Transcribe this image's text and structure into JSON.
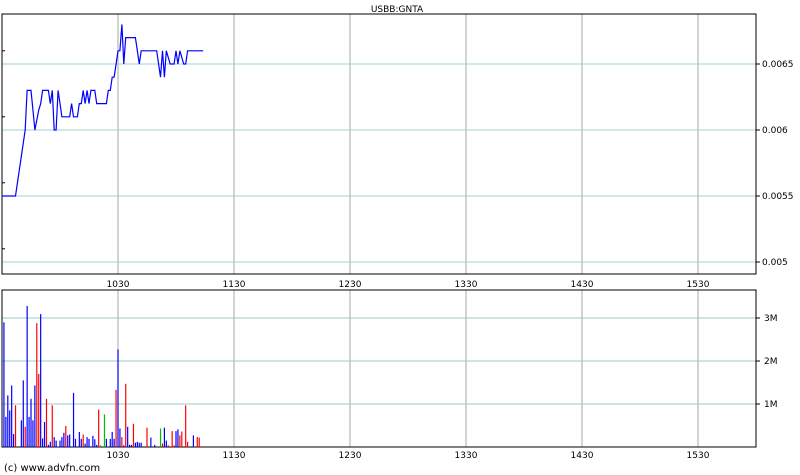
{
  "chart_data": [
    {
      "type": "line",
      "title": "USBB:GNTA",
      "xlim": [
        "09:30",
        "16:00"
      ],
      "ylim": [
        0.0049,
        0.00688
      ],
      "x_ticks": [
        "1030",
        "1130",
        "1230",
        "1330",
        "1430",
        "1530"
      ],
      "y_ticks": [
        "0.005",
        "0.0055",
        "0.006",
        "0.0065"
      ],
      "grid": true,
      "line_color": "#0000ff",
      "points": [
        [
          "09:30",
          0.0055
        ],
        [
          "09:37",
          0.0055
        ],
        [
          "09:42",
          0.006
        ],
        [
          "09:43",
          0.0063
        ],
        [
          "09:45",
          0.0063
        ],
        [
          "09:47",
          0.006
        ],
        [
          "09:49",
          0.00615
        ],
        [
          "09:50",
          0.0062
        ],
        [
          "09:51",
          0.0063
        ],
        [
          "09:54",
          0.0063
        ],
        [
          "09:55",
          0.0062
        ],
        [
          "09:56",
          0.0063
        ],
        [
          "09:57",
          0.006
        ],
        [
          "09:58",
          0.006
        ],
        [
          "09:59",
          0.0063
        ],
        [
          "10:01",
          0.0061
        ],
        [
          "10:05",
          0.0061
        ],
        [
          "10:06",
          0.0062
        ],
        [
          "10:07",
          0.0061
        ],
        [
          "10:09",
          0.0061
        ],
        [
          "10:10",
          0.0062
        ],
        [
          "10:11",
          0.0062
        ],
        [
          "10:12",
          0.0063
        ],
        [
          "10:13",
          0.0062
        ],
        [
          "10:14",
          0.0063
        ],
        [
          "10:15",
          0.0062
        ],
        [
          "10:16",
          0.0063
        ],
        [
          "10:18",
          0.0063
        ],
        [
          "10:19",
          0.0062
        ],
        [
          "10:24",
          0.0062
        ],
        [
          "10:25",
          0.0063
        ],
        [
          "10:26",
          0.0063
        ],
        [
          "10:27",
          0.0064
        ],
        [
          "10:28",
          0.0064
        ],
        [
          "10:29",
          0.0065
        ],
        [
          "10:30",
          0.0066
        ],
        [
          "10:31",
          0.0066
        ],
        [
          "10:32",
          0.0068
        ],
        [
          "10:33",
          0.0065
        ],
        [
          "10:34",
          0.0067
        ],
        [
          "10:39",
          0.0067
        ],
        [
          "10:41",
          0.0065
        ],
        [
          "10:42",
          0.0066
        ],
        [
          "10:50",
          0.0066
        ],
        [
          "10:52",
          0.0064
        ],
        [
          "10:53",
          0.0066
        ],
        [
          "10:54",
          0.0064
        ],
        [
          "10:55",
          0.0066
        ],
        [
          "10:57",
          0.0065
        ],
        [
          "10:59",
          0.0065
        ],
        [
          "11:00",
          0.0066
        ],
        [
          "11:01",
          0.0065
        ],
        [
          "11:02",
          0.0066
        ],
        [
          "11:04",
          0.0065
        ],
        [
          "11:05",
          0.0065
        ],
        [
          "11:06",
          0.0066
        ],
        [
          "11:14",
          0.0066
        ]
      ]
    },
    {
      "type": "bar",
      "xlim": [
        "09:30",
        "16:00"
      ],
      "ylim": [
        0,
        3.6
      ],
      "x_ticks": [
        "1030",
        "1130",
        "1230",
        "1330",
        "1430",
        "1530"
      ],
      "y_ticks": [
        "1M",
        "2M",
        "3M"
      ],
      "grid": true,
      "colors": {
        "blue": "#0000ff",
        "red": "#ff0000",
        "green": "#00c000"
      },
      "bars": [
        [
          "09:31",
          2.9,
          "blue"
        ],
        [
          "09:32",
          0.7,
          "blue"
        ],
        [
          "09:33",
          1.2,
          "blue"
        ],
        [
          "09:34",
          0.85,
          "blue"
        ],
        [
          "09:35",
          1.43,
          "blue"
        ],
        [
          "09:36",
          0.3,
          "blue"
        ],
        [
          "09:37",
          0.97,
          "red"
        ],
        [
          "09:40",
          0.62,
          "blue"
        ],
        [
          "09:41",
          1.55,
          "blue"
        ],
        [
          "09:42",
          0.47,
          "red"
        ],
        [
          "09:43",
          3.28,
          "blue"
        ],
        [
          "09:44",
          0.7,
          "blue"
        ],
        [
          "09:45",
          1.12,
          "blue"
        ],
        [
          "09:46",
          0.62,
          "blue"
        ],
        [
          "09:47",
          1.43,
          "blue"
        ],
        [
          "09:48",
          2.88,
          "red"
        ],
        [
          "09:49",
          1.7,
          "red"
        ],
        [
          "09:50",
          3.09,
          "blue"
        ],
        [
          "09:51",
          0.2,
          "blue"
        ],
        [
          "09:52",
          0.58,
          "blue"
        ],
        [
          "09:53",
          1.12,
          "red"
        ],
        [
          "09:54",
          0.05,
          "blue"
        ],
        [
          "09:55",
          0.12,
          "blue"
        ],
        [
          "09:56",
          0.97,
          "red"
        ],
        [
          "09:57",
          0.23,
          "blue"
        ],
        [
          "09:58",
          0.15,
          "blue"
        ],
        [
          "10:00",
          0.15,
          "blue"
        ],
        [
          "10:01",
          0.23,
          "blue"
        ],
        [
          "10:02",
          0.33,
          "blue"
        ],
        [
          "10:03",
          0.49,
          "red"
        ],
        [
          "10:04",
          0.27,
          "blue"
        ],
        [
          "10:05",
          0.29,
          "blue"
        ],
        [
          "10:07",
          1.26,
          "blue"
        ],
        [
          "10:08",
          0.19,
          "blue"
        ],
        [
          "10:10",
          0.35,
          "blue"
        ],
        [
          "10:11",
          0.19,
          "blue"
        ],
        [
          "10:12",
          0.29,
          "red"
        ],
        [
          "10:13",
          0.08,
          "blue"
        ],
        [
          "10:14",
          0.23,
          "blue"
        ],
        [
          "10:15",
          0.19,
          "blue"
        ],
        [
          "10:17",
          0.26,
          "blue"
        ],
        [
          "10:18",
          0.18,
          "blue"
        ],
        [
          "10:19",
          0.05,
          "blue"
        ],
        [
          "10:20",
          0.87,
          "red"
        ],
        [
          "10:21",
          0.04,
          "green"
        ],
        [
          "10:23",
          0.76,
          "green"
        ],
        [
          "10:24",
          0.19,
          "blue"
        ],
        [
          "10:26",
          0.19,
          "blue"
        ],
        [
          "10:27",
          0.35,
          "blue"
        ],
        [
          "10:28",
          0.19,
          "blue"
        ],
        [
          "10:29",
          1.33,
          "red"
        ],
        [
          "10:30",
          2.27,
          "blue"
        ],
        [
          "10:31",
          0.43,
          "blue"
        ],
        [
          "10:32",
          0.23,
          "red"
        ],
        [
          "10:33",
          0.04,
          "blue"
        ],
        [
          "10:34",
          1.47,
          "red"
        ],
        [
          "10:35",
          0.47,
          "blue"
        ],
        [
          "10:36",
          0.05,
          "blue"
        ],
        [
          "10:37",
          0.05,
          "blue"
        ],
        [
          "10:38",
          0.54,
          "red"
        ],
        [
          "10:39",
          0.1,
          "blue"
        ],
        [
          "10:40",
          0.12,
          "blue"
        ],
        [
          "10:41",
          0.1,
          "blue"
        ],
        [
          "10:42",
          0.1,
          "blue"
        ],
        [
          "10:45",
          0.45,
          "red"
        ],
        [
          "10:47",
          0.22,
          "blue"
        ],
        [
          "10:49",
          0.05,
          "blue"
        ],
        [
          "10:52",
          0.43,
          "green"
        ],
        [
          "10:53",
          0.08,
          "red"
        ],
        [
          "10:54",
          0.45,
          "blue"
        ],
        [
          "10:55",
          0.15,
          "blue"
        ],
        [
          "10:56",
          0.04,
          "red"
        ],
        [
          "10:58",
          0.37,
          "red"
        ],
        [
          "10:59",
          0.04,
          "red"
        ],
        [
          "11:00",
          0.37,
          "blue"
        ],
        [
          "11:01",
          0.41,
          "blue"
        ],
        [
          "11:02",
          0.27,
          "red"
        ],
        [
          "11:03",
          0.36,
          "red"
        ],
        [
          "11:05",
          0.97,
          "red"
        ],
        [
          "11:06",
          0.12,
          "red"
        ],
        [
          "11:09",
          0.27,
          "blue"
        ],
        [
          "11:11",
          0.23,
          "red"
        ],
        [
          "11:12",
          0.22,
          "red"
        ]
      ]
    }
  ],
  "footer": {
    "copyright": "(c) www.advfn.com"
  }
}
